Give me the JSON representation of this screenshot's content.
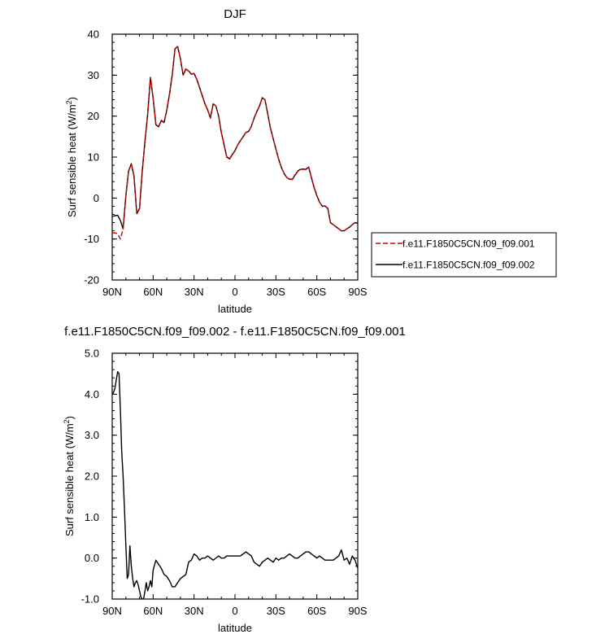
{
  "chart_data": [
    {
      "type": "line",
      "title": "DJF",
      "xlabel": "latitude",
      "ylabel": "Surf sensible heat (W/m²)",
      "ylabel_base": "Surf sensible heat (W/m",
      "ylabel_sup": "2",
      "ylabel_close": ")",
      "xlim": [
        90,
        -90
      ],
      "ylim": [
        -20,
        40
      ],
      "xticks": [
        90,
        60,
        30,
        0,
        -30,
        -60,
        -90
      ],
      "xticklabels": [
        "90N",
        "60N",
        "30N",
        "0",
        "30S",
        "60S",
        "90S"
      ],
      "yticks": [
        -20,
        -10,
        0,
        10,
        20,
        30,
        40
      ],
      "yticklabels": [
        "-20",
        "-10",
        "0",
        "10",
        "20",
        "30",
        "40"
      ],
      "grid": false,
      "legend_position": "right",
      "series": [
        {
          "name": "f.e11.F1850C5CN.f09_f09.001",
          "color": "#cc0000",
          "dash": "dashed",
          "x": [
            90,
            88,
            86,
            84,
            82,
            80,
            78,
            76,
            74,
            72,
            70,
            68,
            66,
            64,
            62,
            60,
            58,
            56,
            54,
            52,
            50,
            48,
            46,
            44,
            42,
            40,
            38,
            36,
            34,
            32,
            30,
            28,
            26,
            24,
            22,
            20,
            18,
            16,
            14,
            12,
            10,
            8,
            6,
            4,
            2,
            0,
            -2,
            -4,
            -6,
            -8,
            -10,
            -12,
            -14,
            -16,
            -18,
            -20,
            -22,
            -24,
            -26,
            -28,
            -30,
            -32,
            -34,
            -36,
            -38,
            -40,
            -42,
            -44,
            -46,
            -48,
            -50,
            -52,
            -54,
            -56,
            -58,
            -60,
            -62,
            -64,
            -66,
            -68,
            -70,
            -72,
            -74,
            -76,
            -78,
            -80,
            -82,
            -84,
            -86,
            -88,
            -90
          ],
          "y": [
            -8.5,
            -8.5,
            -8.7,
            -10.0,
            -7.5,
            0.5,
            6.5,
            8.3,
            5.5,
            -3.5,
            -2.5,
            6.5,
            14.0,
            20.5,
            29.5,
            24.5,
            18.0,
            17.5,
            19.0,
            18.5,
            21.5,
            25.5,
            30.0,
            36.5,
            37.0,
            34.0,
            30.0,
            31.5,
            31.0,
            30.2,
            30.4,
            29.0,
            27.0,
            25.0,
            23.0,
            21.5,
            19.5,
            23.0,
            22.5,
            20.0,
            16.0,
            13.0,
            10.0,
            9.5,
            10.5,
            11.5,
            13.0,
            14.0,
            15.0,
            16.0,
            16.2,
            17.5,
            19.5,
            21.0,
            22.5,
            24.5,
            24.0,
            20.5,
            17.0,
            14.5,
            12.0,
            9.5,
            7.5,
            6.0,
            5.0,
            4.5,
            4.5,
            5.5,
            6.5,
            7.0,
            7.0,
            7.0,
            7.5,
            5.0,
            2.5,
            0.5,
            -1.0,
            -2.0,
            -2.0,
            -2.5,
            -6.0,
            -6.5,
            -7.0,
            -7.5,
            -8.0,
            -8.0,
            -7.5,
            -7.0,
            -6.5,
            -6.0,
            -6.0
          ]
        },
        {
          "name": "f.e11.F1850C5CN.f09_f09.002",
          "color": "#000000",
          "dash": "solid",
          "x": [
            90,
            88,
            86,
            84,
            82,
            80,
            78,
            76,
            74,
            72,
            70,
            68,
            66,
            64,
            62,
            60,
            58,
            56,
            54,
            52,
            50,
            48,
            46,
            44,
            42,
            40,
            38,
            36,
            34,
            32,
            30,
            28,
            26,
            24,
            22,
            20,
            18,
            16,
            14,
            12,
            10,
            8,
            6,
            4,
            2,
            0,
            -2,
            -4,
            -6,
            -8,
            -10,
            -12,
            -14,
            -16,
            -18,
            -20,
            -22,
            -24,
            -26,
            -28,
            -30,
            -32,
            -34,
            -36,
            -38,
            -40,
            -42,
            -44,
            -46,
            -48,
            -50,
            -52,
            -54,
            -56,
            -58,
            -60,
            -62,
            -64,
            -66,
            -68,
            -70,
            -72,
            -74,
            -76,
            -78,
            -80,
            -82,
            -84,
            -86,
            -88,
            -90
          ],
          "y": [
            -4.5,
            -4.3,
            -4.2,
            -5.5,
            -7.5,
            0.6,
            6.6,
            8.4,
            5.3,
            -3.8,
            -2.6,
            6.4,
            13.9,
            20.4,
            29.4,
            24.4,
            17.9,
            17.4,
            18.9,
            18.4,
            21.4,
            25.4,
            30.0,
            36.4,
            37.0,
            34.0,
            30.0,
            31.5,
            31.0,
            30.3,
            30.4,
            29.0,
            27.0,
            25.0,
            23.0,
            21.5,
            19.6,
            23.0,
            22.5,
            20.0,
            16.0,
            13.0,
            10.0,
            9.6,
            10.6,
            11.6,
            13.0,
            14.0,
            15.0,
            16.0,
            16.3,
            17.5,
            19.5,
            21.1,
            22.5,
            24.5,
            24.0,
            20.5,
            17.1,
            14.5,
            12.0,
            9.5,
            7.5,
            6.0,
            5.0,
            4.6,
            4.6,
            5.6,
            6.6,
            7.0,
            7.1,
            7.0,
            7.6,
            5.0,
            2.6,
            0.6,
            -1.0,
            -2.0,
            -1.9,
            -2.5,
            -6.0,
            -6.5,
            -7.0,
            -7.5,
            -8.0,
            -8.0,
            -7.5,
            -7.1,
            -6.5,
            -6.0,
            -6.2
          ]
        }
      ]
    },
    {
      "type": "line",
      "title": "f.e11.F1850C5CN.f09_f09.002 - f.e11.F1850C5CN.f09_f09.001",
      "xlabel": "latitude",
      "ylabel": "Surf sensible heat (W/m²)",
      "ylabel_base": "Surf sensible heat (W/m",
      "ylabel_sup": "2",
      "ylabel_close": ")",
      "xlim": [
        90,
        -90
      ],
      "ylim": [
        -1.0,
        5.0
      ],
      "xticks": [
        90,
        60,
        30,
        0,
        -30,
        -60,
        -90
      ],
      "xticklabels": [
        "90N",
        "60N",
        "30N",
        "0",
        "30S",
        "60S",
        "90S"
      ],
      "yticks": [
        -1.0,
        0.0,
        1.0,
        2.0,
        3.0,
        4.0,
        5.0
      ],
      "yticklabels": [
        "-1.0",
        "0.0",
        "1.0",
        "2.0",
        "3.0",
        "4.0",
        "5.0"
      ],
      "grid": false,
      "series": [
        {
          "color": "#000000",
          "dash": "solid",
          "x": [
            90,
            89,
            88,
            87,
            86,
            85,
            84,
            83,
            82,
            81,
            80,
            79,
            78,
            77,
            76,
            75,
            74,
            73,
            72,
            71,
            70,
            69,
            68,
            67,
            66,
            65,
            64,
            63,
            62,
            61,
            60,
            58,
            56,
            54,
            52,
            50,
            48,
            46,
            44,
            42,
            40,
            38,
            36,
            34,
            32,
            30,
            28,
            26,
            24,
            22,
            20,
            18,
            16,
            14,
            12,
            10,
            8,
            6,
            4,
            2,
            0,
            -2,
            -4,
            -6,
            -8,
            -10,
            -12,
            -14,
            -16,
            -18,
            -20,
            -22,
            -24,
            -26,
            -28,
            -30,
            -32,
            -34,
            -36,
            -38,
            -40,
            -42,
            -44,
            -46,
            -48,
            -50,
            -52,
            -54,
            -56,
            -58,
            -60,
            -62,
            -64,
            -66,
            -68,
            -70,
            -72,
            -74,
            -76,
            -78,
            -80,
            -82,
            -84,
            -86,
            -88,
            -90
          ],
          "y": [
            4.0,
            4.05,
            4.15,
            4.35,
            4.55,
            4.5,
            3.6,
            2.6,
            2.0,
            1.2,
            0.3,
            -0.5,
            -0.4,
            0.3,
            -0.2,
            -0.5,
            -0.7,
            -0.6,
            -0.55,
            -0.65,
            -0.8,
            -0.95,
            -1.0,
            -1.0,
            -0.8,
            -0.6,
            -0.8,
            -0.7,
            -0.55,
            -0.7,
            -0.3,
            -0.05,
            -0.15,
            -0.25,
            -0.4,
            -0.45,
            -0.55,
            -0.7,
            -0.7,
            -0.6,
            -0.5,
            -0.45,
            -0.4,
            -0.1,
            -0.05,
            0.1,
            0.05,
            -0.05,
            0.0,
            0.0,
            0.05,
            0.0,
            -0.05,
            0.0,
            0.05,
            0.0,
            0.0,
            0.05,
            0.05,
            0.05,
            0.05,
            0.05,
            0.05,
            0.1,
            0.15,
            0.1,
            0.05,
            -0.1,
            -0.15,
            -0.2,
            -0.1,
            -0.05,
            0.0,
            -0.05,
            -0.1,
            0.0,
            -0.05,
            0.0,
            0.0,
            0.05,
            0.1,
            0.05,
            0.0,
            0.0,
            0.05,
            0.1,
            0.15,
            0.15,
            0.1,
            0.05,
            0.0,
            0.05,
            0.0,
            -0.05,
            -0.05,
            -0.05,
            -0.05,
            0.0,
            0.05,
            0.2,
            -0.05,
            0.0,
            -0.15,
            0.05,
            -0.05,
            -0.25
          ]
        }
      ]
    }
  ]
}
